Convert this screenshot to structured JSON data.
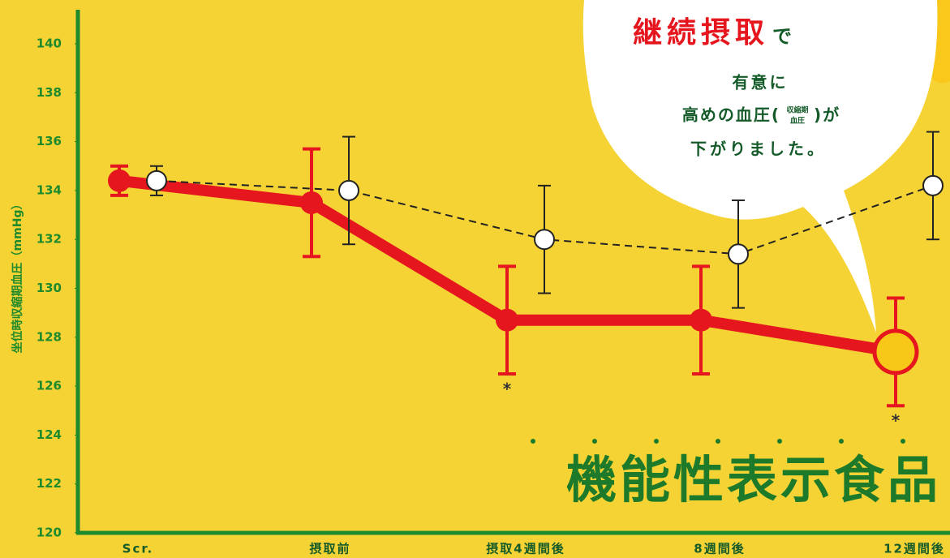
{
  "chart_data": {
    "type": "line",
    "y_label": "坐位時収縮期血圧（mmHg）",
    "categories": [
      "Scr.",
      "摂取前",
      "摂取4週間後",
      "8週間後",
      "12週間後"
    ],
    "ylim": [
      120,
      140
    ],
    "yticks": [
      120,
      122,
      124,
      126,
      128,
      130,
      132,
      134,
      136,
      138,
      140
    ],
    "series": [
      {
        "color": "#e5161e",
        "values": [
          134.4,
          133.5,
          128.7,
          128.7,
          127.4
        ],
        "errors": [
          0.6,
          2.2,
          2.2,
          2.2,
          2.2
        ],
        "significance_labels": [
          null,
          null,
          "*",
          null,
          "*"
        ]
      },
      {
        "color": "#222222",
        "values": [
          134.4,
          134.0,
          132.0,
          131.4,
          134.2
        ],
        "errors": [
          0.6,
          2.2,
          2.2,
          2.2,
          2.2
        ]
      }
    ],
    "callout": {
      "emphasis": "継続摂取",
      "emphasis_suffix": "で",
      "line2": "有意に",
      "line3_start": "高めの血圧(",
      "line3_small_top": "収縮期",
      "line3_small_bottom": "血圧",
      "line3_end": ")が",
      "line4": "下がりました。"
    },
    "badge": "機能性表示食品"
  }
}
